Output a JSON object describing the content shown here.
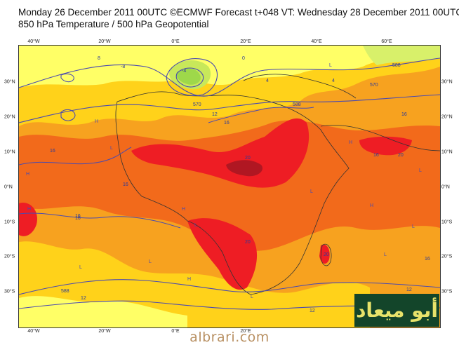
{
  "header": {
    "line1": "Monday 26 December 2011 00UTC ©ECMWF Forecast t+048 VT: Wednesday 28 December 2011 00UTC",
    "line2": "850 hPa Temperature / 500 hPa Geopotential"
  },
  "axes": {
    "lon_ticks": [
      "40°W",
      "20°W",
      "0°E",
      "20°E",
      "40°E",
      "60°E"
    ],
    "lat_ticks": [
      "30°N",
      "20°N",
      "10°N",
      "0°N",
      "10°S",
      "20°S",
      "30°S"
    ]
  },
  "contour_labels": [
    "0",
    "8",
    "-4",
    "-8",
    "570",
    "588",
    "12",
    "16",
    "16",
    "16",
    "16",
    "20",
    "20",
    "16",
    "12",
    "12",
    "588",
    "570",
    "4",
    "588",
    "12",
    "16",
    "16",
    "20",
    "20",
    "16",
    "4"
  ],
  "pressure_markers": [
    "H",
    "L"
  ],
  "colors": {
    "pale_yellow": "#ffff66",
    "yellow": "#ffd21a",
    "orange": "#f7a21f",
    "dark_orange": "#f26a1b",
    "red": "#ee1d24",
    "dark_red": "#b01722",
    "green": "#c8e85a",
    "contour": "#4a4ab0"
  },
  "watermark": {
    "logo_text": "أبو ميعاد",
    "site": "albrari.com"
  }
}
